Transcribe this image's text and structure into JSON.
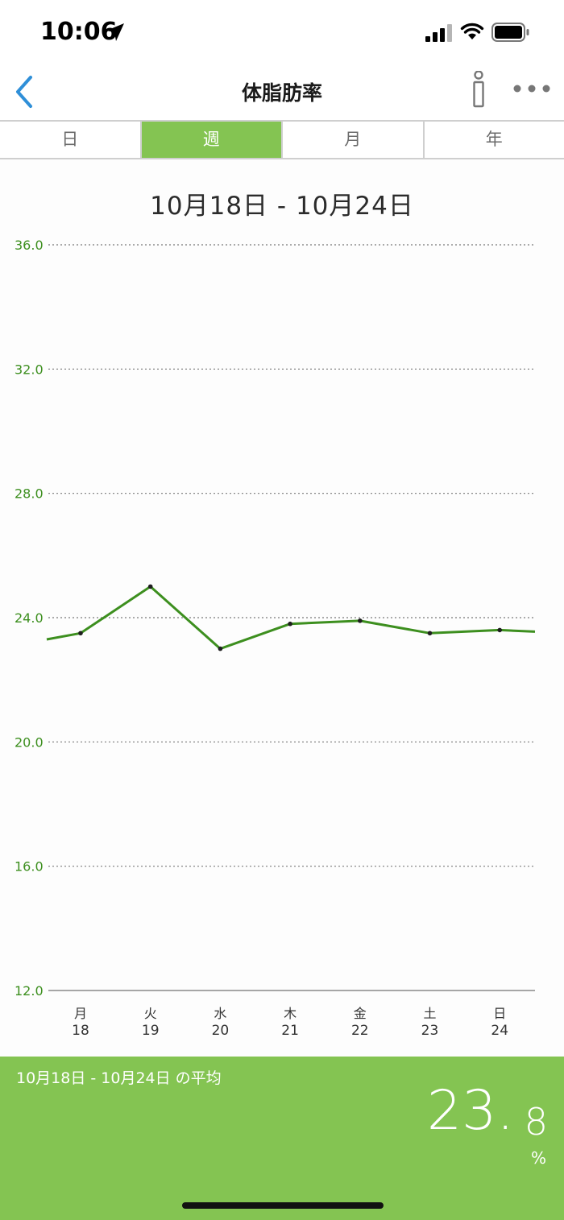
{
  "status": {
    "time": "10:06"
  },
  "nav": {
    "title": "体脂肪率"
  },
  "tabs": [
    {
      "label": "日",
      "active": false
    },
    {
      "label": "週",
      "active": true
    },
    {
      "label": "月",
      "active": false
    },
    {
      "label": "年",
      "active": false
    }
  ],
  "chart": {
    "range_title": "10月18日 - 10月24日"
  },
  "chart_data": {
    "type": "line",
    "ylim": [
      12.0,
      36.0
    ],
    "yticks": [
      "36.0",
      "32.0",
      "28.0",
      "24.0",
      "20.0",
      "16.0",
      "12.0"
    ],
    "grid": true,
    "categories_day": [
      "月",
      "火",
      "水",
      "木",
      "金",
      "土",
      "日"
    ],
    "categories_date": [
      "18",
      "19",
      "20",
      "21",
      "22",
      "23",
      "24"
    ],
    "series": [
      {
        "color": "#3d8f1f",
        "values": [
          23.5,
          25.0,
          23.0,
          23.8,
          23.9,
          23.5,
          23.6
        ]
      }
    ],
    "left_edge_value": 23.3,
    "right_edge_value": 23.55
  },
  "summary": {
    "label": "10月18日 - 10月24日 の平均",
    "avg_int": "23.",
    "avg_dec": "8",
    "unit": "%"
  },
  "colors": {
    "accent": "#84c452",
    "line": "#3d8f1f",
    "back_arrow": "#2f8fd8"
  }
}
